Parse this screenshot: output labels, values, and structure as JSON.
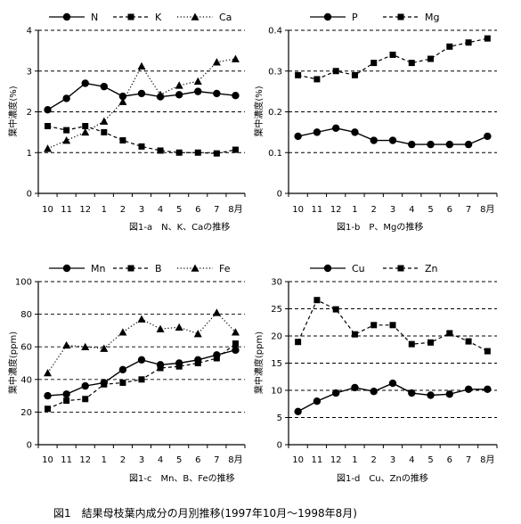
{
  "months": [
    "10",
    "11",
    "12",
    "1",
    "2",
    "3",
    "4",
    "5",
    "6",
    "7",
    "8月"
  ],
  "figure_caption": "図1　結果母枝葉内成分の月別推移(1997年10月～1998年8月)",
  "chart_data": [
    {
      "type": "line",
      "caption": "図1-a　N、K、Caの推移",
      "ylabel": "葉中濃度(%)",
      "ylim": [
        0,
        4
      ],
      "yticks": [
        "0",
        "1",
        "2",
        "3",
        "4"
      ],
      "grid": "horizontal dashed",
      "legend_position": "top",
      "series": [
        {
          "name": "N",
          "marker": "circle",
          "line": "solid",
          "values": [
            2.05,
            2.33,
            2.7,
            2.62,
            2.38,
            2.45,
            2.37,
            2.42,
            2.5,
            2.45,
            2.4
          ]
        },
        {
          "name": "K",
          "marker": "square",
          "line": "dashed",
          "values": [
            1.65,
            1.55,
            1.65,
            1.5,
            1.3,
            1.15,
            1.05,
            1.0,
            1.0,
            0.98,
            1.07
          ]
        },
        {
          "name": "Ca",
          "marker": "triangle",
          "line": "dotted",
          "values": [
            1.1,
            1.3,
            1.5,
            1.77,
            2.25,
            3.12,
            2.42,
            2.65,
            2.75,
            3.22,
            3.3
          ]
        }
      ]
    },
    {
      "type": "line",
      "caption": "図1-b　P、Mgの推移",
      "ylabel": "葉中濃度(%)",
      "ylim": [
        0,
        0.4
      ],
      "yticks": [
        "0",
        "0.1",
        "0.2",
        "0.3",
        "0.4"
      ],
      "grid": "horizontal dashed",
      "legend_position": "top",
      "series": [
        {
          "name": "P",
          "marker": "circle",
          "line": "solid",
          "values": [
            0.14,
            0.15,
            0.16,
            0.15,
            0.13,
            0.13,
            0.12,
            0.12,
            0.12,
            0.12,
            0.14
          ]
        },
        {
          "name": "Mg",
          "marker": "square",
          "line": "dashed",
          "values": [
            0.29,
            0.28,
            0.3,
            0.29,
            0.32,
            0.34,
            0.32,
            0.33,
            0.36,
            0.37,
            0.38
          ]
        }
      ]
    },
    {
      "type": "line",
      "caption": "図1-c　Mn、B、Feの推移",
      "ylabel": "葉中濃度(ppm)",
      "ylim": [
        0,
        100
      ],
      "yticks": [
        "0",
        "20",
        "40",
        "60",
        "80",
        "100"
      ],
      "grid": "horizontal dashed",
      "legend_position": "top",
      "series": [
        {
          "name": "Mn",
          "marker": "circle",
          "line": "solid",
          "values": [
            30,
            31,
            36,
            38,
            46,
            52,
            49,
            50,
            52,
            55,
            58
          ]
        },
        {
          "name": "B",
          "marker": "square",
          "line": "dashed",
          "values": [
            22,
            27,
            28,
            37,
            38,
            40,
            47,
            48,
            50,
            53,
            62
          ]
        },
        {
          "name": "Fe",
          "marker": "triangle",
          "line": "dotted",
          "values": [
            44,
            61,
            60,
            59,
            69,
            77,
            71,
            72,
            68,
            81,
            69
          ]
        }
      ]
    },
    {
      "type": "line",
      "caption": "図1-d　Cu、Znの推移",
      "ylabel": "葉中濃度(ppm)",
      "ylim": [
        0,
        30
      ],
      "yticks": [
        "0",
        "5",
        "10",
        "15",
        "20",
        "25",
        "30"
      ],
      "grid": "horizontal dashed",
      "legend_position": "top",
      "series": [
        {
          "name": "Cu",
          "marker": "circle",
          "line": "solid",
          "values": [
            6.1,
            8.0,
            9.5,
            10.5,
            9.8,
            11.3,
            9.5,
            9.1,
            9.3,
            10.2,
            10.2
          ]
        },
        {
          "name": "Zn",
          "marker": "square",
          "line": "dashed",
          "values": [
            18.9,
            26.6,
            24.9,
            20.3,
            22.0,
            22.0,
            18.5,
            18.8,
            20.5,
            19.0,
            17.2
          ]
        }
      ]
    }
  ]
}
